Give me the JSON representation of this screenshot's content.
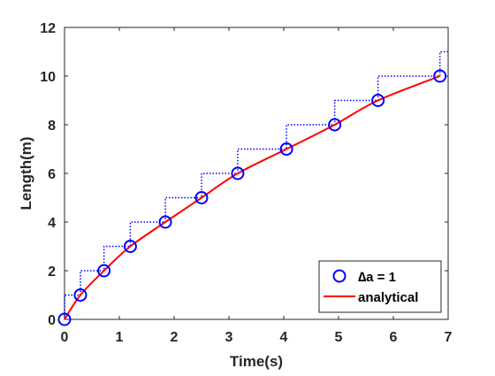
{
  "chart_data": {
    "type": "line",
    "title": "",
    "xlabel": "Time(s)",
    "ylabel": "Length(m)",
    "xlim": [
      0,
      7
    ],
    "ylim": [
      0,
      12
    ],
    "xticks": [
      "0",
      "1",
      "2",
      "3",
      "4",
      "5",
      "6",
      "7"
    ],
    "yticks": [
      "0",
      "2",
      "4",
      "6",
      "8",
      "10",
      "12"
    ],
    "grid": false,
    "legend_position": "bottom-right",
    "series": [
      {
        "name": "∆a = 1",
        "style": "markers",
        "marker": "circle",
        "color": "#0000ff",
        "x": [
          0,
          0.29,
          0.72,
          1.2,
          1.84,
          2.5,
          3.16,
          4.05,
          4.93,
          5.72,
          6.85
        ],
        "y": [
          0,
          1,
          2,
          3,
          4,
          5,
          6,
          7,
          8,
          9,
          10
        ]
      },
      {
        "name": "",
        "style": "dotted-step",
        "color": "#0000ff",
        "x": [
          0,
          0.29,
          0.72,
          1.2,
          1.84,
          2.5,
          3.16,
          4.05,
          4.93,
          5.72,
          6.85,
          7.0
        ],
        "y": [
          0,
          1,
          2,
          3,
          4,
          5,
          6,
          7,
          8,
          9,
          10,
          11
        ]
      },
      {
        "name": "analytical",
        "style": "line",
        "color": "#ff0000",
        "x": [
          0,
          0.29,
          0.72,
          1.2,
          1.84,
          2.5,
          3.16,
          4.05,
          4.93,
          5.72,
          6.85
        ],
        "y": [
          0,
          1,
          2,
          3,
          4,
          5,
          6,
          7,
          8,
          9,
          10
        ]
      }
    ]
  }
}
